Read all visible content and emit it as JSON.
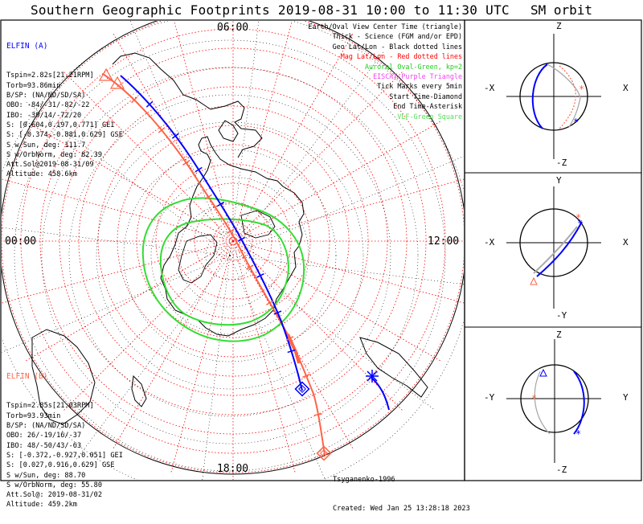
{
  "title": "Southern Geographic Footprints 2019-08-31 10:00 to 11:30 UTC",
  "sm_title": "SM orbit",
  "map": {
    "time_labels": {
      "top": "06:00",
      "left": "00:00",
      "right": "12:00",
      "bottom": "18:00"
    }
  },
  "elfin_a": {
    "name": "ELFIN (A)",
    "color": "#0000ff",
    "lines": [
      "Tspin=2.82s[21.21RPM]",
      "Torb=93.86min",
      "B/SP: (NA/ND/SD/SA)",
      "OBO: -84/-31/-82/-22",
      "IBO: -39/14/-72/20",
      "S: [0.604,0.197,0.771] GEI",
      "S: [-0.374,-0.881,0.629] GSE",
      "S w/Sun, deg: 111.7",
      "S w/OrbNorm, deg: 82.39",
      "Att.Sol@2019-08-31/09",
      "Altitude: 458.6km"
    ]
  },
  "elfin_b": {
    "name": "ELFIN (B)",
    "color": "#ff6347",
    "lines": [
      "Tspin=2.85s[21.03RPM]",
      "Torb=93.93min",
      "B/SP: (NA/ND/SD/SA)",
      "OBO: 26/-19/16/-37",
      "IBO: 48/-50/43/-63",
      "S: [-0.372,-0.927,0.051] GEI",
      "S: [0.027,0.916,0.629] GSE",
      "S w/Sun, deg: 88.70",
      "S w/OrbNorm, deg: 55.80",
      "Att.Sol@: 2019-08-31/02",
      "Altitude: 459.2km"
    ]
  },
  "legend": [
    {
      "text": "Earth/Oval View Center Time (triangle)",
      "color": "#000000"
    },
    {
      "text": "Thick - Science (FGM and/or EPD)",
      "color": "#000000"
    },
    {
      "text": "Geo Lat/Lon - Black dotted lines",
      "color": "#000000"
    },
    {
      "text": "Mag Lat/Lon - Red dotted lines",
      "color": "#ff0000"
    },
    {
      "text": "Auroral Oval-Green, kp=2",
      "color": "#22cc22"
    },
    {
      "text": "EISCAT-Purple Triangle",
      "color": "#ee44ee"
    },
    {
      "text": "Tick Marks every 5min",
      "color": "#000000"
    },
    {
      "text": "Start Time-Diamond",
      "color": "#000000"
    },
    {
      "text": "End Time-Asterisk",
      "color": "#000000"
    },
    {
      "text": "VLF-Green Square",
      "color": "#55dd55"
    }
  ],
  "credits": {
    "model": "Tsyganenko-1996",
    "created": "Created: Wed Jan 25 13:28:18 2023"
  },
  "sm_panels": [
    {
      "top": "Z",
      "bottom": "-Z",
      "left": "-X",
      "right": "X"
    },
    {
      "top": "Y",
      "bottom": "-Y",
      "left": "-X",
      "right": "X"
    },
    {
      "top": "Z",
      "bottom": "-Z",
      "left": "-Y",
      "right": "Y"
    }
  ],
  "colors": {
    "elfin_a": "#0000ff",
    "elfin_b": "#ff6347",
    "oval": "#33dd33",
    "mag_grid": "#ff0000"
  }
}
